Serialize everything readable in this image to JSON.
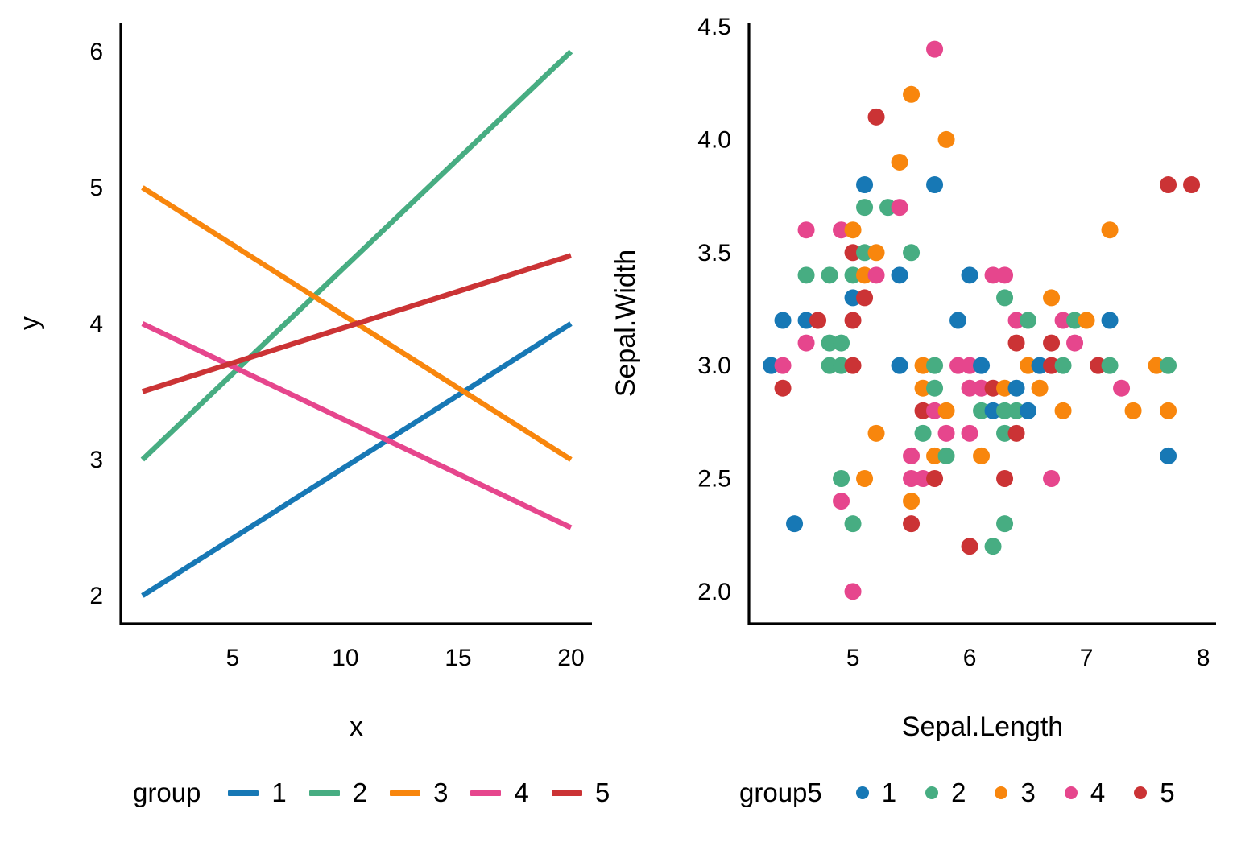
{
  "palette": {
    "1": "#1778B5",
    "2": "#47AD82",
    "3": "#F8860D",
    "4": "#E6468D",
    "5": "#CB3335"
  },
  "text_color": "#000000",
  "axis_color": "#000000",
  "chart_data": [
    {
      "type": "line",
      "panel": "left",
      "title": "",
      "xlabel": "x",
      "ylabel": "y",
      "xlim": [
        0.04,
        20.93
      ],
      "ylim": [
        1.793,
        6.213
      ],
      "grid": false,
      "legend_position": "bottom",
      "legend_title": "group",
      "x_ticks": [
        {
          "v": 5,
          "label": "5"
        },
        {
          "v": 10,
          "label": "10"
        },
        {
          "v": 15,
          "label": "15"
        },
        {
          "v": 20,
          "label": "20"
        }
      ],
      "y_ticks": [
        {
          "v": 2,
          "label": "2"
        },
        {
          "v": 3,
          "label": "3"
        },
        {
          "v": 4,
          "label": "4"
        },
        {
          "v": 5,
          "label": "5"
        },
        {
          "v": 6,
          "label": "6"
        }
      ],
      "series": [
        {
          "name": "1",
          "color": "1",
          "points": [
            [
              1,
              2.0
            ],
            [
              20,
              4.0
            ]
          ]
        },
        {
          "name": "2",
          "color": "2",
          "points": [
            [
              1,
              3.0
            ],
            [
              20,
              6.0
            ]
          ]
        },
        {
          "name": "3",
          "color": "3",
          "points": [
            [
              1,
              5.0
            ],
            [
              20,
              3.0
            ]
          ]
        },
        {
          "name": "4",
          "color": "4",
          "points": [
            [
              1,
              4.0
            ],
            [
              20,
              2.5
            ]
          ]
        },
        {
          "name": "5",
          "color": "5",
          "points": [
            [
              1,
              3.5
            ],
            [
              20,
              4.5
            ]
          ]
        }
      ]
    },
    {
      "type": "scatter",
      "panel": "right",
      "title": "",
      "xlabel": "Sepal.Length",
      "ylabel": "Sepal.Width",
      "xlim": [
        4.11,
        8.11
      ],
      "ylim": [
        1.857,
        4.518
      ],
      "grid": false,
      "legend_position": "bottom",
      "legend_title": "group5",
      "x_ticks": [
        {
          "v": 5,
          "label": "5"
        },
        {
          "v": 6,
          "label": "6"
        },
        {
          "v": 7,
          "label": "7"
        },
        {
          "v": 8,
          "label": "8"
        }
      ],
      "y_ticks": [
        {
          "v": 4.5,
          "label": "4.5"
        },
        {
          "v": 4.0,
          "label": "4.0"
        },
        {
          "v": 3.5,
          "label": "3.5"
        },
        {
          "v": 3.0,
          "label": "3.0"
        },
        {
          "v": 2.5,
          "label": "2.5"
        },
        {
          "v": 2.0,
          "label": "2.0"
        }
      ],
      "legend_items": [
        {
          "name": "1",
          "color": "1"
        },
        {
          "name": "2",
          "color": "2"
        },
        {
          "name": "3",
          "color": "3"
        },
        {
          "name": "4",
          "color": "4"
        },
        {
          "name": "5",
          "color": "5"
        }
      ],
      "points": [
        [
          5.7,
          4.4,
          4
        ],
        [
          5.5,
          4.2,
          3
        ],
        [
          5.2,
          4.1,
          5
        ],
        [
          5.8,
          4.0,
          3
        ],
        [
          5.4,
          3.9,
          3
        ],
        [
          5.1,
          3.8,
          1
        ],
        [
          5.7,
          3.8,
          1
        ],
        [
          7.7,
          3.8,
          5
        ],
        [
          7.9,
          3.8,
          5
        ],
        [
          5.1,
          3.7,
          2
        ],
        [
          5.3,
          3.7,
          2
        ],
        [
          5.4,
          3.7,
          4
        ],
        [
          4.6,
          3.6,
          4
        ],
        [
          4.9,
          3.6,
          4
        ],
        [
          5.0,
          3.6,
          3
        ],
        [
          7.2,
          3.6,
          3
        ],
        [
          5.0,
          3.5,
          5
        ],
        [
          5.1,
          3.5,
          2
        ],
        [
          5.2,
          3.5,
          3
        ],
        [
          5.5,
          3.5,
          2
        ],
        [
          4.6,
          3.4,
          2
        ],
        [
          4.8,
          3.4,
          2
        ],
        [
          5.0,
          3.4,
          2
        ],
        [
          5.1,
          3.4,
          3
        ],
        [
          5.2,
          3.4,
          4
        ],
        [
          5.4,
          3.4,
          1
        ],
        [
          6.0,
          3.4,
          1
        ],
        [
          6.2,
          3.4,
          4
        ],
        [
          6.3,
          3.4,
          4
        ],
        [
          5.0,
          3.3,
          1
        ],
        [
          5.1,
          3.3,
          5
        ],
        [
          6.3,
          3.3,
          2
        ],
        [
          6.7,
          3.3,
          3
        ],
        [
          4.4,
          3.2,
          1
        ],
        [
          4.6,
          3.2,
          1
        ],
        [
          4.7,
          3.2,
          5
        ],
        [
          5.0,
          3.2,
          5
        ],
        [
          5.9,
          3.2,
          1
        ],
        [
          6.4,
          3.2,
          4
        ],
        [
          6.5,
          3.2,
          2
        ],
        [
          6.8,
          3.2,
          4
        ],
        [
          6.9,
          3.2,
          2
        ],
        [
          7.0,
          3.2,
          3
        ],
        [
          7.2,
          3.2,
          1
        ],
        [
          4.6,
          3.1,
          4
        ],
        [
          4.8,
          3.1,
          2
        ],
        [
          4.9,
          3.1,
          2
        ],
        [
          6.4,
          3.1,
          5
        ],
        [
          6.7,
          3.1,
          5
        ],
        [
          6.9,
          3.1,
          4
        ],
        [
          4.3,
          3.0,
          1
        ],
        [
          4.4,
          3.0,
          4
        ],
        [
          4.8,
          3.0,
          2
        ],
        [
          4.9,
          3.0,
          2
        ],
        [
          5.0,
          3.0,
          5
        ],
        [
          5.4,
          3.0,
          1
        ],
        [
          5.6,
          3.0,
          3
        ],
        [
          5.7,
          3.0,
          2
        ],
        [
          5.9,
          3.0,
          4
        ],
        [
          6.0,
          3.0,
          4
        ],
        [
          6.1,
          3.0,
          1
        ],
        [
          6.5,
          3.0,
          3
        ],
        [
          6.6,
          3.0,
          1
        ],
        [
          6.7,
          3.0,
          5
        ],
        [
          6.8,
          3.0,
          2
        ],
        [
          7.1,
          3.0,
          5
        ],
        [
          7.2,
          3.0,
          2
        ],
        [
          7.6,
          3.0,
          3
        ],
        [
          7.7,
          3.0,
          2
        ],
        [
          4.4,
          2.9,
          5
        ],
        [
          5.6,
          2.9,
          3
        ],
        [
          5.7,
          2.9,
          2
        ],
        [
          6.0,
          2.9,
          4
        ],
        [
          6.1,
          2.9,
          4
        ],
        [
          6.2,
          2.9,
          5
        ],
        [
          6.3,
          2.9,
          3
        ],
        [
          6.4,
          2.9,
          1
        ],
        [
          6.6,
          2.9,
          3
        ],
        [
          7.3,
          2.9,
          4
        ],
        [
          5.6,
          2.8,
          5
        ],
        [
          5.7,
          2.8,
          4
        ],
        [
          5.8,
          2.8,
          3
        ],
        [
          6.1,
          2.8,
          2
        ],
        [
          6.2,
          2.8,
          1
        ],
        [
          6.3,
          2.8,
          2
        ],
        [
          6.4,
          2.8,
          2
        ],
        [
          6.5,
          2.8,
          1
        ],
        [
          6.8,
          2.8,
          3
        ],
        [
          7.4,
          2.8,
          3
        ],
        [
          7.7,
          2.8,
          3
        ],
        [
          5.2,
          2.7,
          3
        ],
        [
          5.6,
          2.7,
          2
        ],
        [
          5.8,
          2.7,
          4
        ],
        [
          6.0,
          2.7,
          4
        ],
        [
          6.3,
          2.7,
          2
        ],
        [
          6.4,
          2.7,
          5
        ],
        [
          5.5,
          2.6,
          4
        ],
        [
          5.7,
          2.6,
          3
        ],
        [
          5.8,
          2.6,
          2
        ],
        [
          6.1,
          2.6,
          3
        ],
        [
          7.7,
          2.6,
          1
        ],
        [
          4.9,
          2.5,
          2
        ],
        [
          5.1,
          2.5,
          3
        ],
        [
          5.5,
          2.5,
          4
        ],
        [
          5.6,
          2.5,
          4
        ],
        [
          5.7,
          2.5,
          5
        ],
        [
          6.3,
          2.5,
          5
        ],
        [
          6.7,
          2.5,
          4
        ],
        [
          4.9,
          2.4,
          4
        ],
        [
          5.5,
          2.4,
          3
        ],
        [
          4.5,
          2.3,
          1
        ],
        [
          5.0,
          2.3,
          2
        ],
        [
          5.5,
          2.3,
          5
        ],
        [
          6.3,
          2.3,
          2
        ],
        [
          6.0,
          2.2,
          5
        ],
        [
          6.2,
          2.2,
          2
        ],
        [
          5.0,
          2.0,
          4
        ]
      ]
    }
  ]
}
